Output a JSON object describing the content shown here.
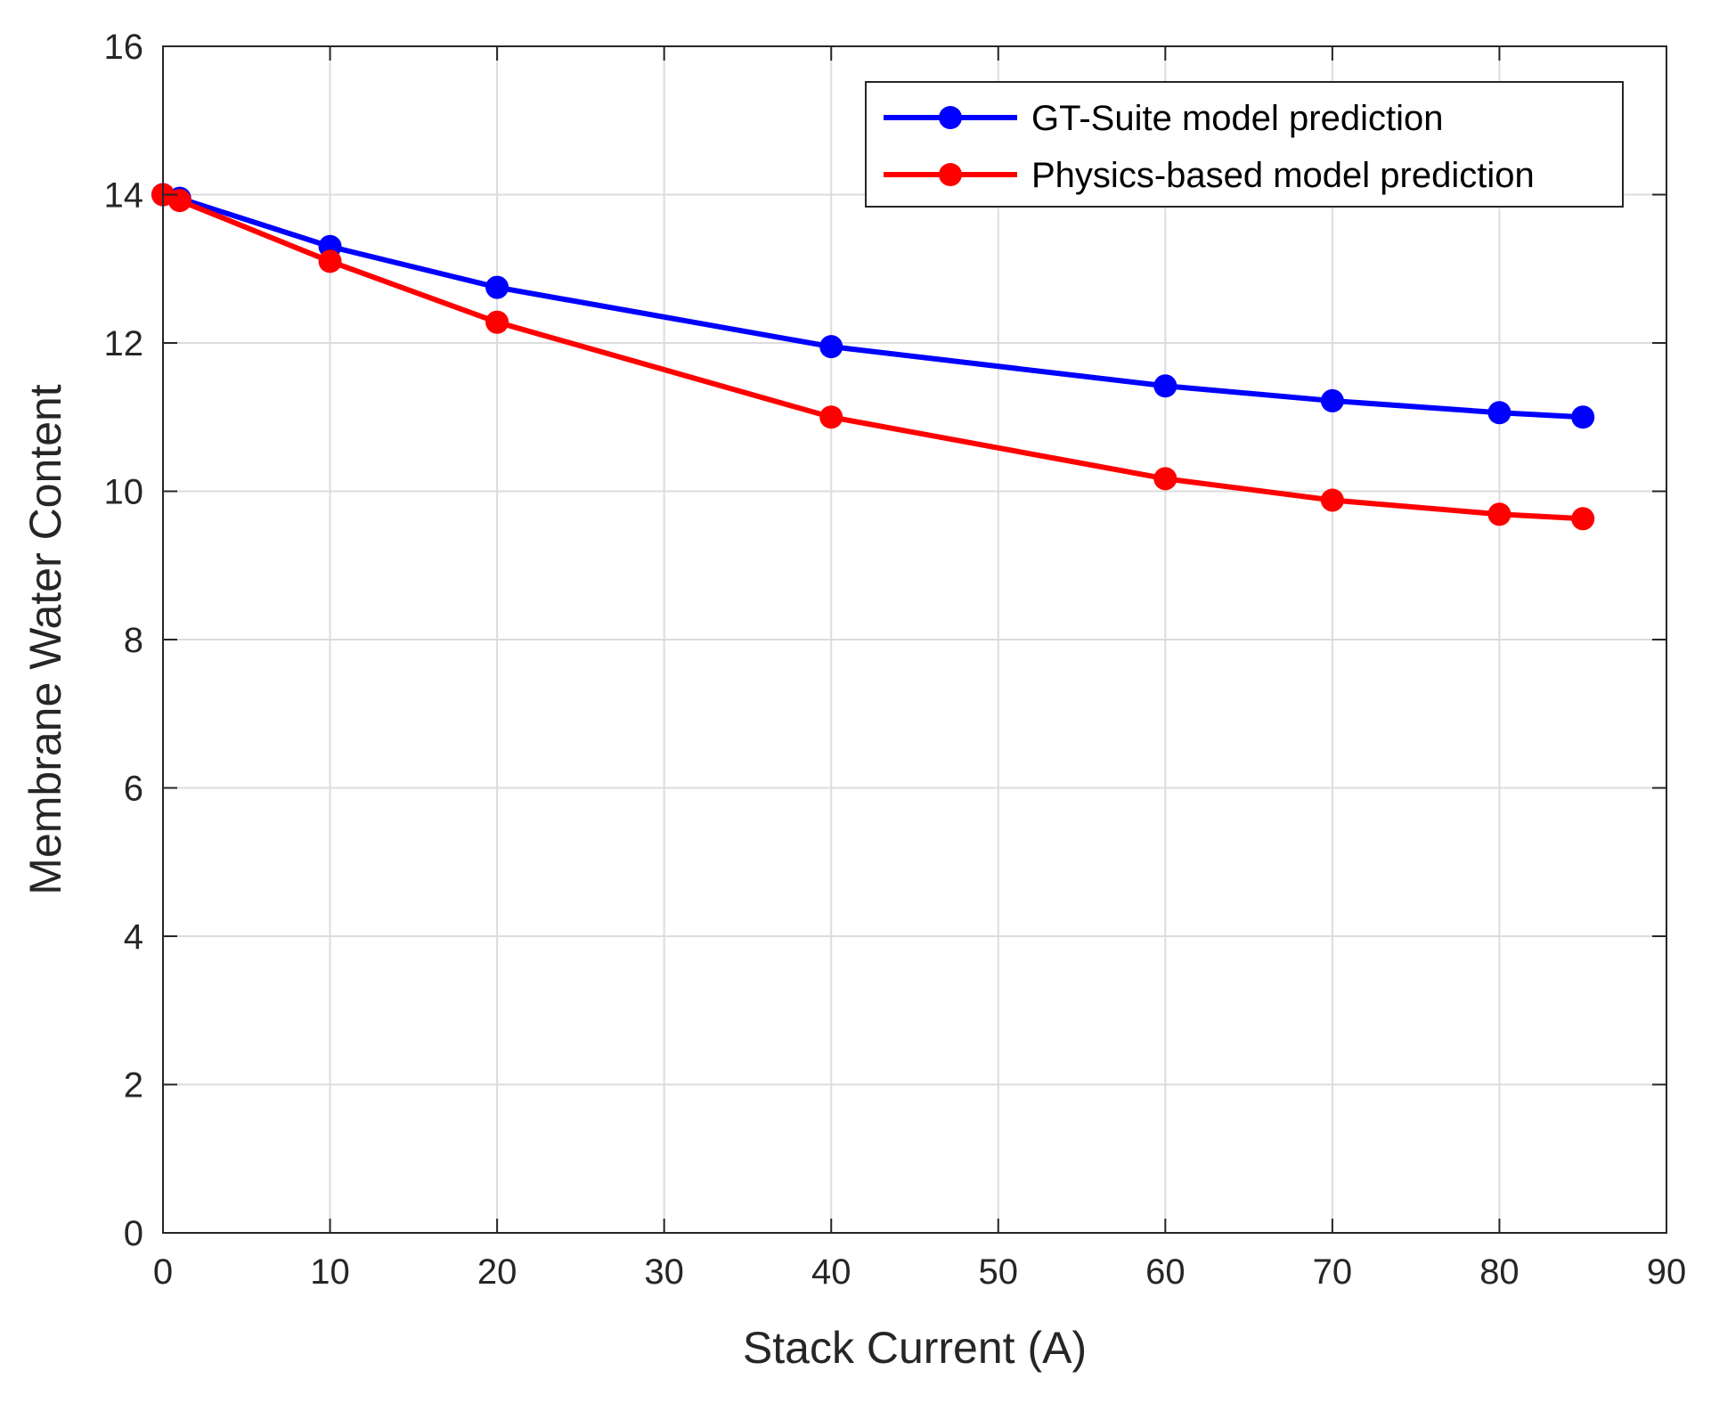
{
  "chart_data": {
    "type": "line",
    "xlabel": "Stack Current (A)",
    "ylabel": "Membrane Water Content",
    "xlim": [
      0,
      90
    ],
    "ylim": [
      0,
      16
    ],
    "xticks": [
      0,
      10,
      20,
      30,
      40,
      50,
      60,
      70,
      80,
      90
    ],
    "yticks": [
      0,
      2,
      4,
      6,
      8,
      10,
      12,
      14,
      16
    ],
    "grid": true,
    "legend_position": "top-right",
    "series": [
      {
        "name": "GT-Suite model prediction",
        "color": "#0000ff",
        "marker": "circle",
        "x": [
          0,
          1,
          10,
          20,
          40,
          60,
          70,
          80,
          85
        ],
        "y": [
          14.0,
          13.95,
          13.3,
          12.75,
          11.95,
          11.42,
          11.22,
          11.06,
          11.0
        ]
      },
      {
        "name": "Physics-based model prediction",
        "color": "#ff0000",
        "marker": "circle",
        "x": [
          0,
          1,
          10,
          20,
          40,
          60,
          70,
          80,
          85
        ],
        "y": [
          14.0,
          13.92,
          13.1,
          12.28,
          11.0,
          10.17,
          9.88,
          9.69,
          9.63
        ]
      }
    ]
  }
}
